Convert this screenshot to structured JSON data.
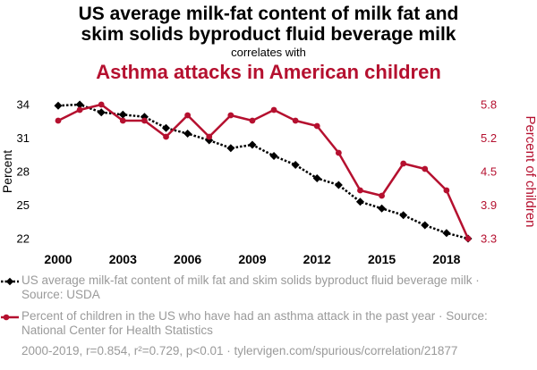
{
  "header": {
    "title_line1": "US average milk-fat content of milk fat and",
    "title_line2": "skim solids byproduct fluid beverage milk",
    "subtitle": "correlates with",
    "title_line3": "Asthma attacks in American children"
  },
  "chart_data": {
    "type": "line",
    "x": [
      2000,
      2001,
      2002,
      2003,
      2004,
      2005,
      2006,
      2007,
      2008,
      2009,
      2010,
      2011,
      2012,
      2013,
      2014,
      2015,
      2016,
      2017,
      2018,
      2019
    ],
    "xticks": [
      "2000",
      "2003",
      "2006",
      "2009",
      "2012",
      "2015",
      "2018"
    ],
    "left_axis": {
      "label": "Percent",
      "ticks": [
        "34",
        "31",
        "28",
        "25",
        "22"
      ],
      "range": [
        22,
        34
      ],
      "color": "#000000"
    },
    "right_axis": {
      "label": "Percent of children",
      "ticks": [
        "5.8",
        "5.2",
        "4.5",
        "3.9",
        "3.3"
      ],
      "range": [
        3.3,
        5.8
      ],
      "color": "#b5102f"
    },
    "series": [
      {
        "axis": "left",
        "color": "#000000",
        "style": "dotted-with-diamonds",
        "values": [
          33.9,
          34.0,
          33.3,
          33.1,
          32.9,
          31.9,
          31.4,
          30.8,
          30.1,
          30.4,
          29.4,
          28.6,
          27.4,
          26.8,
          25.3,
          24.7,
          24.1,
          23.2,
          22.5,
          22.0
        ]
      },
      {
        "axis": "right",
        "color": "#b5102f",
        "style": "solid-with-circles",
        "values": [
          5.5,
          5.7,
          5.8,
          5.5,
          5.5,
          5.2,
          5.6,
          5.2,
          5.6,
          5.5,
          5.7,
          5.5,
          5.4,
          4.9,
          4.2,
          4.1,
          4.7,
          4.6,
          4.2,
          3.3
        ]
      }
    ]
  },
  "legend": [
    {
      "text": "US average milk-fat content of milk fat and skim solids byproduct fluid beverage milk · Source: USDA",
      "color": "#000000"
    },
    {
      "text": "Percent of children in the US who have had an asthma attack in the past year · Source: National Center for Health Statistics",
      "color": "#b5102f"
    }
  ],
  "footer": "2000-2019, r=0.854, r²=0.729, p<0.01 · tylervigen.com/spurious/correlation/21877"
}
